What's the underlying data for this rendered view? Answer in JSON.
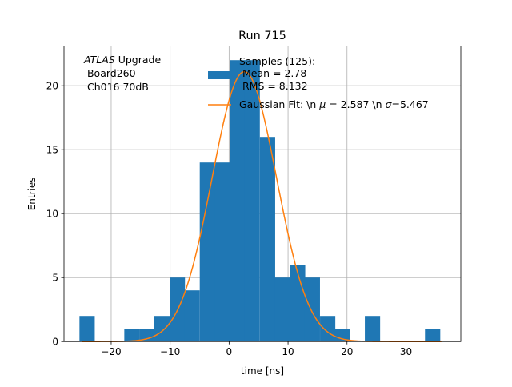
{
  "chart_data": {
    "type": "bar",
    "title": "Run 715",
    "xlabel": "time [ns]",
    "ylabel": "Entries",
    "xlim": [
      -28,
      39.3
    ],
    "ylim": [
      0,
      23.1
    ],
    "grid": true,
    "xticks": [
      -20,
      -10,
      0,
      10,
      20,
      30
    ],
    "yticks": [
      0,
      5,
      10,
      15,
      20
    ],
    "bin_width": 2.55,
    "bin_centers": [
      -24.1,
      -21.6,
      -19.0,
      -16.5,
      -13.9,
      -11.4,
      -8.8,
      -6.3,
      -3.7,
      -1.2,
      1.4,
      3.9,
      6.5,
      9.0,
      11.6,
      14.1,
      16.7,
      19.2,
      21.8,
      24.3,
      26.9,
      29.4,
      32.0,
      34.5
    ],
    "counts": [
      2,
      0,
      0,
      1,
      1,
      2,
      5,
      4,
      14,
      14,
      22,
      22,
      16,
      5,
      6,
      5,
      2,
      1,
      0,
      2,
      0,
      0,
      0,
      1
    ],
    "fit": {
      "label": "Gaussian Fit: \\n $\\mu$ = 2.587 \\n $\\sigma$=5.467",
      "label_prefix": "Gaussian Fit: \\n ",
      "label_mu": "μ",
      "label_mid": " = 2.587 \\n ",
      "label_sigma": "σ",
      "label_suffix": "=5.467",
      "mu": 2.587,
      "sigma": 5.467,
      "amplitude": 21.1
    },
    "legend": {
      "position": "top-center",
      "samples_lines": [
        "Samples (125):",
        " Mean = 2.78",
        " RMS = 8.132"
      ]
    },
    "annotation": {
      "position": "top-left",
      "atlas": "ATLAS",
      "upgrade": " Upgrade",
      "line2": " Board260",
      "line3": " Ch016 70dB"
    },
    "colors": {
      "bars": "#1f77b4",
      "fit": "#ff7f0e",
      "grid": "#b0b0b0"
    }
  }
}
